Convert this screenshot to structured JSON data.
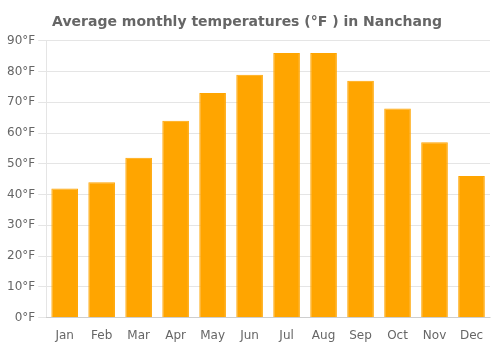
{
  "chart_data": {
    "type": "bar",
    "title": "Average monthly temperatures (°F ) in Nanchang",
    "categories": [
      "Jan",
      "Feb",
      "Mar",
      "Apr",
      "May",
      "Jun",
      "Jul",
      "Aug",
      "Sep",
      "Oct",
      "Nov",
      "Dec"
    ],
    "values": [
      42,
      44,
      52,
      64,
      73,
      79,
      86,
      86,
      77,
      68,
      57,
      46
    ],
    "color": "#FFA500",
    "ylim": [
      0,
      90
    ],
    "yticks": [
      {
        "value": 0,
        "label": "0°F"
      },
      {
        "value": 10,
        "label": "10°F"
      },
      {
        "value": 20,
        "label": "20°F"
      },
      {
        "value": 30,
        "label": "30°F"
      },
      {
        "value": 40,
        "label": "40°F"
      },
      {
        "value": 50,
        "label": "50°F"
      },
      {
        "value": 60,
        "label": "60°F"
      },
      {
        "value": 70,
        "label": "70°F"
      },
      {
        "value": 80,
        "label": "80°F"
      },
      {
        "value": 90,
        "label": "90°F"
      }
    ],
    "grid": true
  }
}
